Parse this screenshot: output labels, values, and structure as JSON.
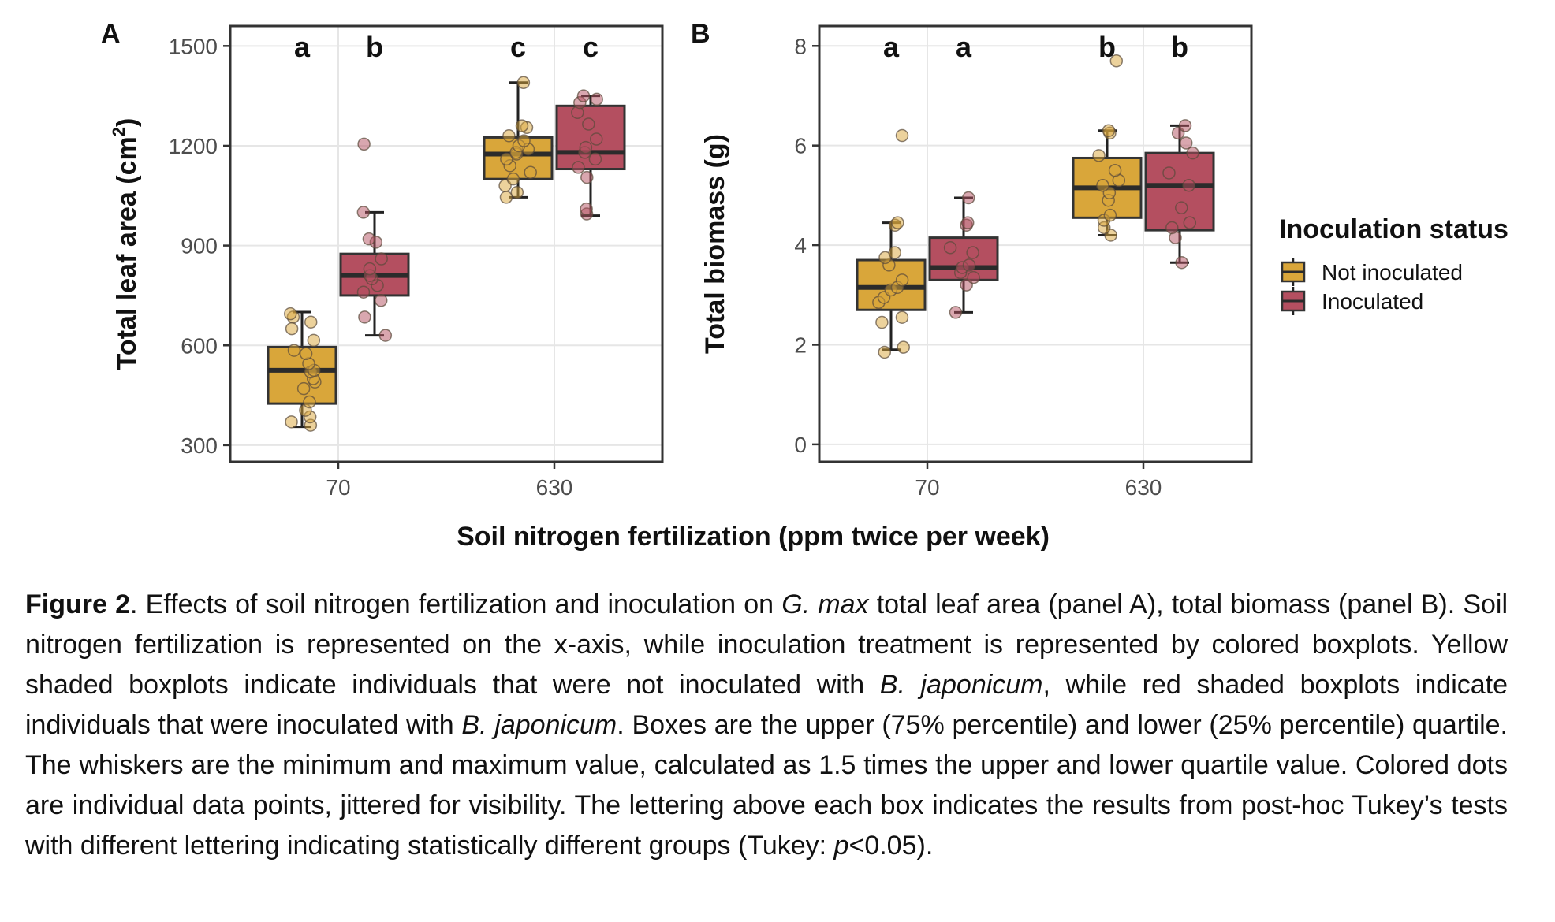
{
  "figure": {
    "xlabel": "Soil nitrogen fertilization (ppm twice per week)",
    "legend_title": "Inoculation status",
    "legend_position": "right",
    "colors": {
      "Not inoculated": "#d9a63a",
      "Inoculated": "#b44f60"
    }
  },
  "chart_data": [
    {
      "panel": "A",
      "type": "box",
      "title": "",
      "xlabel": "Soil nitrogen fertilization (ppm twice per week)",
      "ylabel": "Total leaf area (cm²)",
      "ylim": [
        250,
        1560
      ],
      "yticks": [
        300,
        600,
        900,
        1200,
        1500
      ],
      "categories": [
        "70",
        "630"
      ],
      "grid": true,
      "significance_letters": [
        "a",
        "b",
        "c",
        "c"
      ],
      "series": [
        {
          "name": "Not inoculated",
          "boxes": [
            {
              "x": "70",
              "min": 355,
              "q1": 425,
              "median": 525,
              "q3": 595,
              "max": 700,
              "points": [
                360,
                370,
                385,
                405,
                430,
                470,
                490,
                500,
                520,
                525,
                545,
                575,
                585,
                615,
                650,
                670,
                685,
                695
              ]
            },
            {
              "x": "630",
              "min": 1045,
              "q1": 1100,
              "median": 1175,
              "q3": 1225,
              "max": 1390,
              "points": [
                1045,
                1060,
                1080,
                1100,
                1120,
                1140,
                1160,
                1175,
                1180,
                1190,
                1200,
                1215,
                1230,
                1255,
                1260,
                1390
              ]
            }
          ]
        },
        {
          "name": "Inoculated",
          "boxes": [
            {
              "x": "70",
              "min": 630,
              "q1": 750,
              "median": 810,
              "q3": 875,
              "max": 1000,
              "points": [
                630,
                685,
                735,
                760,
                780,
                800,
                810,
                830,
                860,
                910,
                920,
                1000,
                1205
              ]
            },
            {
              "x": "630",
              "min": 990,
              "q1": 1130,
              "median": 1180,
              "q3": 1320,
              "max": 1350,
              "points": [
                995,
                1010,
                1105,
                1135,
                1160,
                1180,
                1195,
                1220,
                1265,
                1300,
                1330,
                1340,
                1350
              ]
            }
          ]
        }
      ]
    },
    {
      "panel": "B",
      "type": "box",
      "title": "",
      "xlabel": "Soil nitrogen fertilization (ppm twice per week)",
      "ylabel": "Total biomass (g)",
      "ylim": [
        -0.35,
        8.4
      ],
      "yticks": [
        0,
        2,
        4,
        6,
        8
      ],
      "categories": [
        "70",
        "630"
      ],
      "grid": true,
      "significance_letters": [
        "a",
        "a",
        "b",
        "b"
      ],
      "series": [
        {
          "name": "Not inoculated",
          "boxes": [
            {
              "x": "70",
              "min": 1.9,
              "q1": 2.7,
              "median": 3.15,
              "q3": 3.7,
              "max": 4.45,
              "points": [
                1.85,
                1.95,
                2.45,
                2.55,
                2.85,
                2.95,
                3.1,
                3.15,
                3.3,
                3.6,
                3.75,
                3.85,
                4.4,
                4.45,
                6.2
              ]
            },
            {
              "x": "630",
              "min": 4.2,
              "q1": 4.55,
              "median": 5.15,
              "q3": 5.75,
              "max": 6.3,
              "points": [
                4.2,
                4.35,
                4.5,
                4.6,
                4.9,
                5.05,
                5.2,
                5.3,
                5.5,
                5.8,
                6.25,
                6.3,
                7.7
              ]
            }
          ]
        },
        {
          "name": "Inoculated",
          "boxes": [
            {
              "x": "70",
              "min": 2.65,
              "q1": 3.3,
              "median": 3.55,
              "q3": 4.15,
              "max": 4.95,
              "points": [
                2.65,
                3.2,
                3.35,
                3.45,
                3.55,
                3.6,
                3.85,
                3.95,
                4.4,
                4.45,
                4.95
              ]
            },
            {
              "x": "630",
              "min": 3.65,
              "q1": 4.3,
              "median": 5.2,
              "q3": 5.85,
              "max": 6.4,
              "points": [
                3.65,
                4.15,
                4.35,
                4.45,
                4.75,
                5.2,
                5.45,
                5.85,
                6.05,
                6.25,
                6.4
              ]
            }
          ]
        }
      ]
    }
  ],
  "caption": {
    "label": "Figure 2",
    "part1": ". Effects of soil nitrogen fertilization and inoculation on ",
    "species": "G. max",
    "part2": " total leaf area (panel A), total biomass (panel B). Soil nitrogen fertilization is represented on the x-axis, while inoculation treatment is represented by colored boxplots. Yellow shaded boxplots indicate individuals that were not inoculated with ",
    "bacterium1": "B. japonicum",
    "part3": ", while red shaded boxplots indicate individuals that were inoculated with ",
    "bacterium2": "B. japonicum",
    "part4": ". Boxes are the upper (75% percentile) and lower (25% percentile) quartile. The whiskers are the minimum and maximum value, calculated as 1.5 times the upper and lower quartile value. Colored dots are individual data points, jittered for visibility. The lettering above each box indicates the results from post-hoc Tukey’s tests with different lettering indicating statistically different groups (Tukey: ",
    "pvar": "p",
    "part5": "<0.05)."
  }
}
